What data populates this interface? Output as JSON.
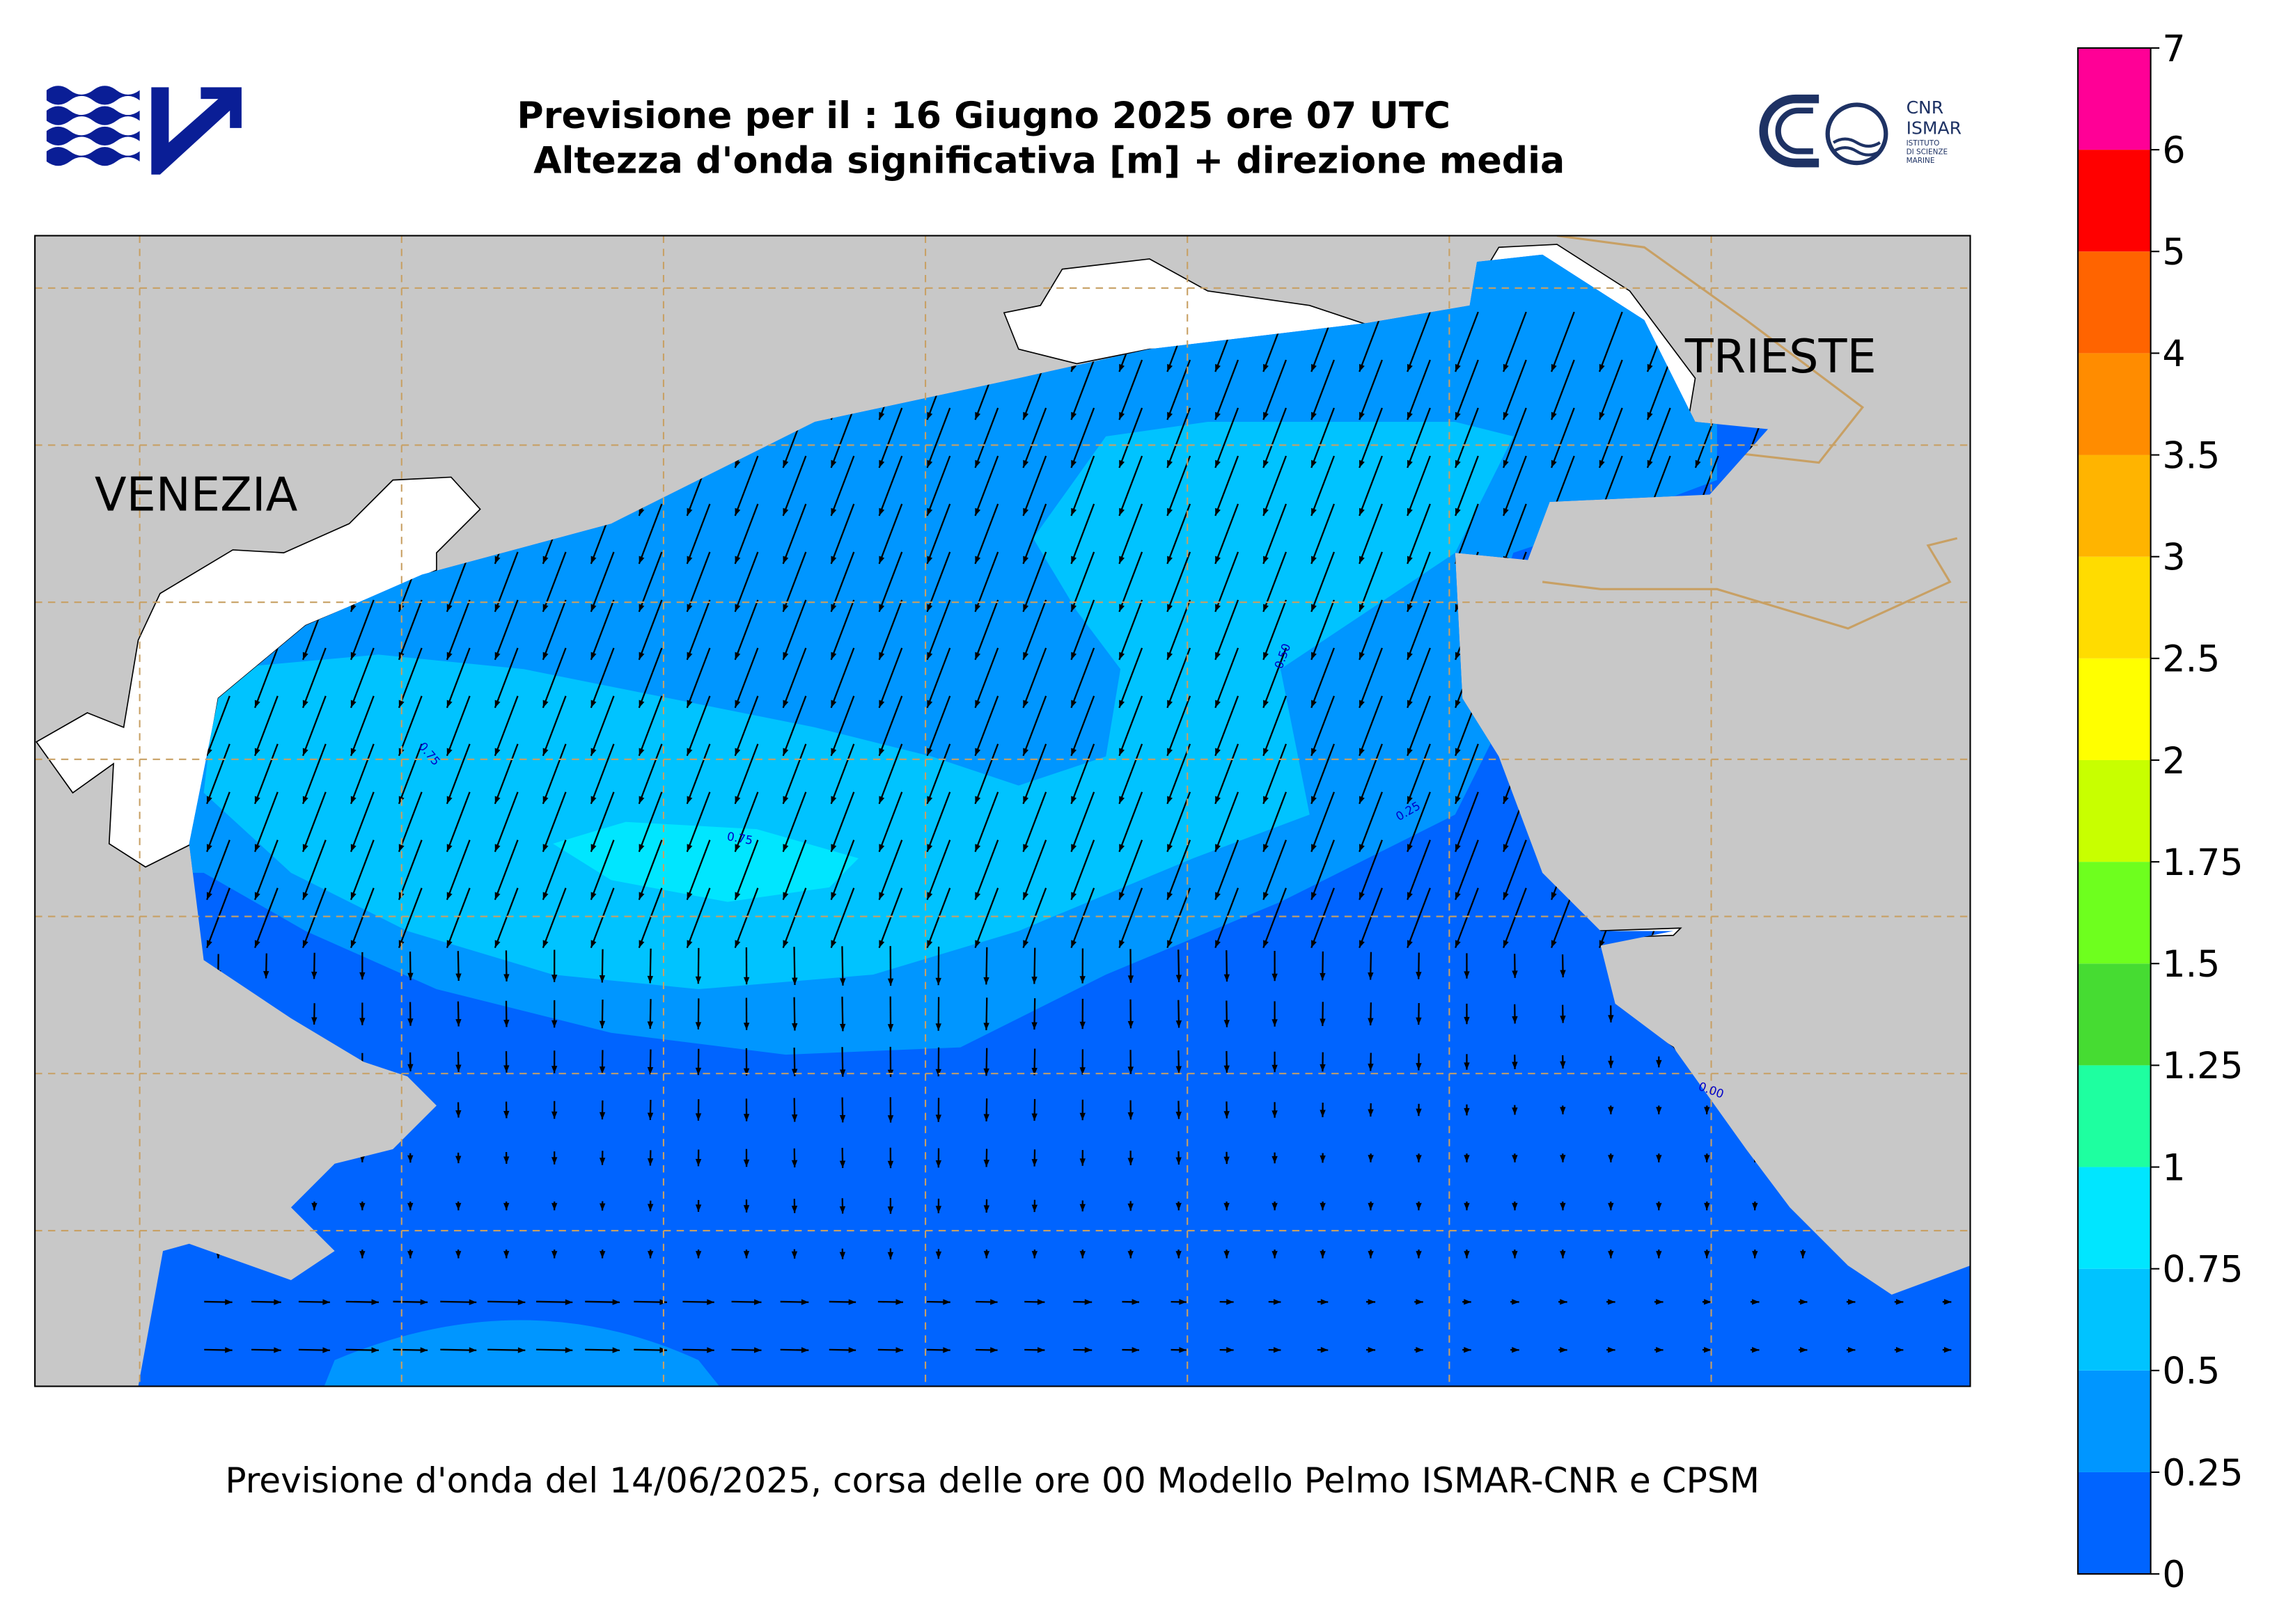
{
  "header": {
    "title_line1": "Previsione per il : 16 Giugno 2025 ore 07 UTC",
    "title_line2": "Altezza d'onda significativa [m] + direzione media",
    "logo_text": [
      "CNR",
      "ISMAR",
      "ISTITUTO",
      "DI SCIENZE",
      "MARINE"
    ]
  },
  "map": {
    "cities": [
      {
        "label": "VENEZIA"
      },
      {
        "label": "TRIESTE"
      }
    ],
    "contour_labels": [
      "0.75",
      "0.75",
      "0.50",
      "0.25",
      "0.00"
    ]
  },
  "colorbar": {
    "ticks": [
      0,
      0.25,
      0.5,
      0.75,
      1,
      1.25,
      1.5,
      1.75,
      2,
      2.5,
      3,
      3.5,
      4,
      5,
      6,
      7
    ],
    "colors": [
      "#0064ff",
      "#0096ff",
      "#00c3ff",
      "#00e6ff",
      "#1effa0",
      "#46dc32",
      "#6eff1e",
      "#c8ff00",
      "#ffff00",
      "#ffdc00",
      "#ffb400",
      "#ff8c00",
      "#ff6400",
      "#ff0000",
      "#ff0096"
    ]
  },
  "footer": "Previsione d'onda del 14/06/2025, corsa delle ore 00 Modello Pelmo ISMAR-CNR e CPSM"
}
